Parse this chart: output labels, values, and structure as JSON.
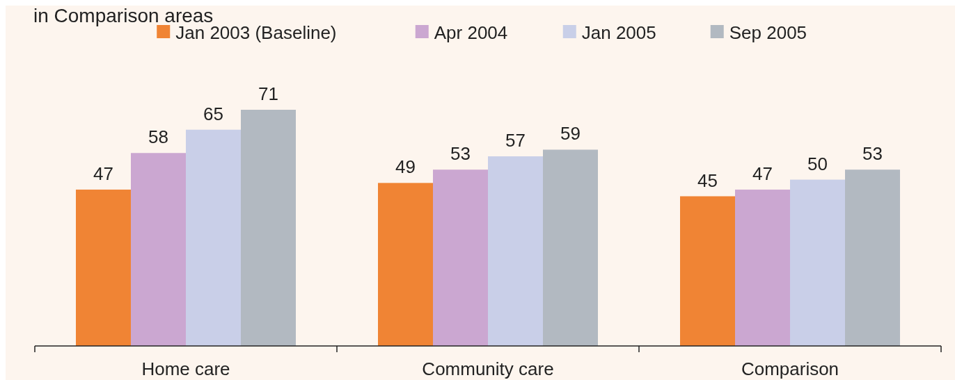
{
  "chart_data": {
    "type": "bar",
    "title": "in Comparison areas",
    "categories": [
      "Home care",
      "Community care",
      "Comparison"
    ],
    "series": [
      {
        "name": "Jan 2003 (Baseline)",
        "color": "#f08434",
        "values": [
          47,
          49,
          45
        ]
      },
      {
        "name": "Apr 2004",
        "color": "#cba7d1",
        "values": [
          58,
          53,
          47
        ]
      },
      {
        "name": "Jan 2005",
        "color": "#c9cfe8",
        "values": [
          65,
          57,
          50
        ]
      },
      {
        "name": "Sep 2005",
        "color": "#b2b9c1",
        "values": [
          71,
          59,
          53
        ]
      }
    ],
    "data_labels": true,
    "legend": "top",
    "grid": false
  }
}
